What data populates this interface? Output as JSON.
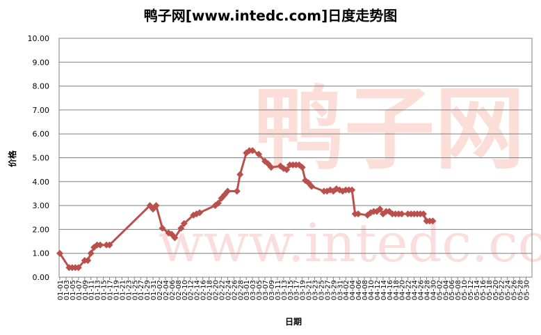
{
  "chart_data": {
    "type": "line",
    "title": "鸭子网[www.intedc.com]日度走势图",
    "y_label": "价格",
    "x_label": "日期",
    "watermark": [
      "鸭子网",
      "www.intedc.com"
    ],
    "color": "#b9504c",
    "grid": true,
    "ylim": [
      0,
      10
    ],
    "yticks": [
      {
        "value": 0,
        "label": "0.00"
      },
      {
        "value": 1,
        "label": "1.00"
      },
      {
        "value": 2,
        "label": "2.00"
      },
      {
        "value": 3,
        "label": "3.00"
      },
      {
        "value": 4,
        "label": "4.00"
      },
      {
        "value": 5,
        "label": "5.00"
      },
      {
        "value": 6,
        "label": "6.00"
      },
      {
        "value": 7,
        "label": "7.00"
      },
      {
        "value": 8,
        "label": "8.00"
      },
      {
        "value": 9,
        "label": "9.00"
      },
      {
        "value": 10,
        "label": "10.00"
      }
    ],
    "categories": [
      "01-01",
      "01-03",
      "01-05",
      "01-07",
      "01-09",
      "01-11",
      "01-13",
      "01-15",
      "01-17",
      "01-19",
      "01-21",
      "01-23",
      "01-25",
      "01-27",
      "01-29",
      "01-31",
      "02-02",
      "02-04",
      "02-06",
      "02-08",
      "02-10",
      "02-12",
      "02-14",
      "02-16",
      "02-18",
      "02-20",
      "02-22",
      "02-24",
      "02-26",
      "02-28",
      "03-01",
      "03-03",
      "03-05",
      "03-07",
      "03-09",
      "03-11",
      "03-13",
      "03-15",
      "03-17",
      "03-19",
      "03-21",
      "03-23",
      "03-25",
      "03-27",
      "03-29",
      "03-31",
      "04-02",
      "04-04",
      "04-06",
      "04-08",
      "04-10",
      "04-12",
      "04-14",
      "04-16",
      "04-18",
      "04-20",
      "04-22",
      "04-24",
      "04-26",
      "04-28",
      "04-30",
      "05-02",
      "05-04",
      "05-06",
      "05-08",
      "05-10",
      "05-12",
      "05-14",
      "05-16",
      "05-18",
      "05-20",
      "05-22",
      "05-24",
      "05-26",
      "05-28",
      "05-30"
    ],
    "x": [
      "01-01",
      "01-04",
      "01-05",
      "01-06",
      "01-07",
      "01-09",
      "01-10",
      "01-11",
      "01-12",
      "01-13",
      "01-14",
      "01-16",
      "01-17",
      "01-30",
      "01-31",
      "02-01",
      "02-03",
      "02-05",
      "02-06",
      "02-07",
      "02-09",
      "02-10",
      "02-13",
      "02-14",
      "02-15",
      "02-20",
      "02-21",
      "02-22",
      "02-23",
      "02-24",
      "02-27",
      "02-28",
      "03-01",
      "03-02",
      "03-03",
      "03-05",
      "03-07",
      "03-08",
      "03-09",
      "03-12",
      "03-13",
      "03-14",
      "03-15",
      "03-16",
      "03-17",
      "03-18",
      "03-19",
      "03-20",
      "03-21",
      "03-22",
      "03-26",
      "03-27",
      "03-28",
      "03-29",
      "03-30",
      "03-31",
      "04-01",
      "04-02",
      "04-03",
      "04-04",
      "04-05",
      "04-06",
      "04-09",
      "04-10",
      "04-11",
      "04-12",
      "04-13",
      "04-14",
      "04-15",
      "04-16",
      "04-17",
      "04-18",
      "04-19",
      "04-20",
      "04-22",
      "04-23",
      "04-24",
      "04-25",
      "04-26",
      "04-27",
      "04-28",
      "04-29",
      "04-30"
    ],
    "values": [
      1.0,
      0.4,
      0.4,
      0.4,
      0.4,
      0.7,
      0.7,
      1.0,
      1.25,
      1.35,
      1.35,
      1.35,
      1.35,
      3.0,
      2.85,
      3.0,
      2.05,
      1.85,
      1.8,
      1.65,
      2.05,
      2.25,
      2.6,
      2.65,
      2.7,
      3.0,
      3.1,
      3.3,
      3.45,
      3.6,
      3.6,
      4.3,
      5.2,
      5.3,
      5.3,
      5.15,
      4.85,
      4.75,
      4.6,
      4.65,
      4.55,
      4.5,
      4.7,
      4.7,
      4.7,
      4.7,
      4.6,
      4.05,
      3.95,
      3.8,
      3.6,
      3.6,
      3.65,
      3.6,
      3.7,
      3.65,
      3.6,
      3.65,
      3.65,
      3.65,
      2.65,
      2.65,
      2.6,
      2.7,
      2.75,
      2.75,
      2.85,
      2.65,
      2.75,
      2.75,
      2.65,
      2.65,
      2.65,
      2.65,
      2.65,
      2.65,
      2.65,
      2.65,
      2.65,
      2.65,
      2.35,
      2.35,
      2.35
    ]
  }
}
